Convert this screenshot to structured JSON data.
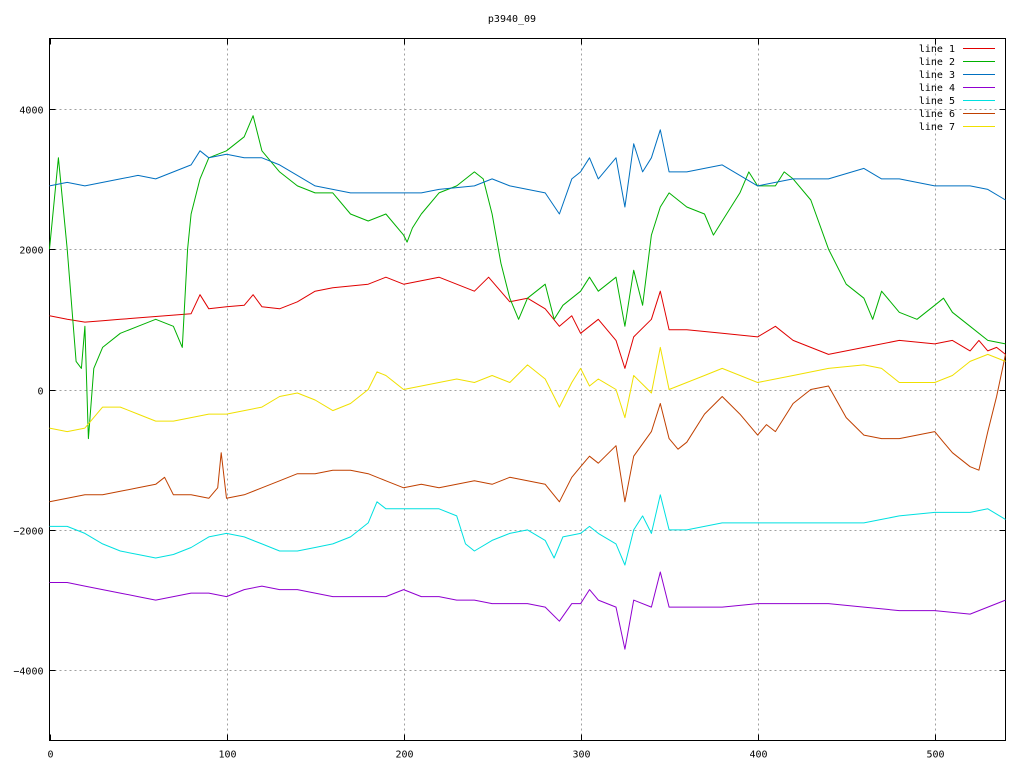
{
  "chart_data": {
    "type": "line",
    "title": "p3940_09",
    "xlabel": "",
    "ylabel": "",
    "xlim": [
      0,
      540
    ],
    "ylim": [
      -5000,
      5000
    ],
    "grid": true,
    "legend_position": "top-right",
    "x_ticks": [
      0,
      100,
      200,
      300,
      400,
      500
    ],
    "y_ticks": [
      -4000,
      -2000,
      0,
      2000,
      4000
    ],
    "x_tick_labels": [
      "0",
      "100",
      "200",
      "300",
      "400",
      "500"
    ],
    "y_tick_labels": [
      "-4000",
      "-2000",
      "0",
      "2000",
      "4000"
    ],
    "series": [
      {
        "name": "line 1",
        "color": "#e00000",
        "x": [
          0,
          10,
          20,
          30,
          40,
          50,
          60,
          70,
          80,
          85,
          90,
          100,
          110,
          115,
          120,
          130,
          140,
          150,
          160,
          180,
          190,
          200,
          210,
          220,
          240,
          248,
          260,
          270,
          280,
          288,
          295,
          300,
          310,
          320,
          325,
          330,
          340,
          345,
          350,
          360,
          380,
          400,
          410,
          420,
          440,
          460,
          480,
          500,
          510,
          520,
          525,
          530,
          535,
          540
        ],
        "y": [
          1050,
          1000,
          960,
          980,
          1000,
          1020,
          1040,
          1060,
          1080,
          1350,
          1150,
          1180,
          1200,
          1350,
          1180,
          1150,
          1250,
          1400,
          1450,
          1500,
          1600,
          1500,
          1550,
          1600,
          1400,
          1600,
          1250,
          1300,
          1150,
          900,
          1050,
          800,
          1000,
          700,
          300,
          750,
          1000,
          1400,
          850,
          850,
          800,
          750,
          900,
          700,
          500,
          600,
          700,
          650,
          700,
          550,
          700,
          550,
          600,
          500
        ]
      },
      {
        "name": "line 2",
        "color": "#00b000",
        "x": [
          0,
          5,
          10,
          15,
          18,
          20,
          22,
          25,
          30,
          40,
          50,
          60,
          70,
          75,
          78,
          80,
          85,
          90,
          100,
          110,
          115,
          120,
          130,
          140,
          150,
          160,
          170,
          180,
          190,
          200,
          202,
          205,
          210,
          220,
          230,
          240,
          245,
          250,
          255,
          260,
          265,
          270,
          280,
          285,
          290,
          300,
          305,
          310,
          320,
          325,
          330,
          335,
          340,
          345,
          350,
          360,
          370,
          375,
          380,
          390,
          395,
          400,
          410,
          415,
          420,
          430,
          440,
          450,
          460,
          465,
          470,
          480,
          490,
          500,
          505,
          510,
          520,
          530,
          540
        ],
        "y": [
          2000,
          3300,
          2000,
          400,
          300,
          900,
          -700,
          300,
          600,
          800,
          900,
          1000,
          900,
          600,
          2000,
          2500,
          3000,
          3300,
          3400,
          3600,
          3900,
          3400,
          3100,
          2900,
          2800,
          2800,
          2500,
          2400,
          2500,
          2200,
          2100,
          2300,
          2500,
          2800,
          2900,
          3100,
          3000,
          2500,
          1800,
          1300,
          1000,
          1300,
          1500,
          1000,
          1200,
          1400,
          1600,
          1400,
          1600,
          900,
          1700,
          1200,
          2200,
          2600,
          2800,
          2600,
          2500,
          2200,
          2400,
          2800,
          3100,
          2900,
          2900,
          3100,
          3000,
          2700,
          2000,
          1500,
          1300,
          1000,
          1400,
          1100,
          1000,
          1200,
          1300,
          1100,
          900,
          700,
          650
        ]
      },
      {
        "name": "line 3",
        "color": "#0070c0",
        "x": [
          0,
          10,
          20,
          30,
          40,
          50,
          60,
          70,
          80,
          85,
          90,
          100,
          110,
          120,
          130,
          140,
          150,
          160,
          170,
          180,
          190,
          200,
          210,
          220,
          240,
          250,
          260,
          270,
          280,
          288,
          295,
          300,
          305,
          310,
          320,
          325,
          330,
          335,
          340,
          345,
          350,
          360,
          370,
          380,
          400,
          410,
          420,
          440,
          460,
          470,
          480,
          500,
          520,
          530,
          540
        ],
        "y": [
          2900,
          2950,
          2900,
          2950,
          3000,
          3050,
          3000,
          3100,
          3200,
          3400,
          3300,
          3350,
          3300,
          3300,
          3200,
          3050,
          2900,
          2850,
          2800,
          2800,
          2800,
          2800,
          2800,
          2850,
          2900,
          3000,
          2900,
          2850,
          2800,
          2500,
          3000,
          3100,
          3300,
          3000,
          3300,
          2600,
          3500,
          3100,
          3300,
          3700,
          3100,
          3100,
          3150,
          3200,
          2900,
          2950,
          3000,
          3000,
          3150,
          3000,
          3000,
          2900,
          2900,
          2850,
          2700
        ]
      },
      {
        "name": "line 4",
        "color": "#9000d0",
        "x": [
          0,
          10,
          20,
          30,
          40,
          50,
          60,
          70,
          80,
          90,
          100,
          110,
          120,
          130,
          140,
          150,
          160,
          180,
          190,
          200,
          210,
          220,
          230,
          240,
          250,
          260,
          270,
          280,
          288,
          295,
          300,
          305,
          310,
          320,
          325,
          330,
          340,
          345,
          350,
          360,
          380,
          400,
          420,
          440,
          460,
          480,
          500,
          520,
          530,
          540
        ],
        "y": [
          -2750,
          -2750,
          -2800,
          -2850,
          -2900,
          -2950,
          -3000,
          -2950,
          -2900,
          -2900,
          -2950,
          -2850,
          -2800,
          -2850,
          -2850,
          -2900,
          -2950,
          -2950,
          -2950,
          -2850,
          -2950,
          -2950,
          -3000,
          -3000,
          -3050,
          -3050,
          -3050,
          -3100,
          -3300,
          -3050,
          -3050,
          -2850,
          -3000,
          -3100,
          -3700,
          -3000,
          -3100,
          -2600,
          -3100,
          -3100,
          -3100,
          -3050,
          -3050,
          -3050,
          -3100,
          -3150,
          -3150,
          -3200,
          -3100,
          -3000
        ]
      },
      {
        "name": "line 5",
        "color": "#00e0e0",
        "x": [
          0,
          10,
          20,
          30,
          40,
          50,
          60,
          70,
          80,
          90,
          100,
          110,
          120,
          130,
          140,
          150,
          160,
          170,
          180,
          185,
          190,
          200,
          210,
          220,
          230,
          235,
          240,
          250,
          260,
          270,
          280,
          285,
          290,
          300,
          305,
          310,
          320,
          325,
          330,
          335,
          340,
          345,
          350,
          360,
          380,
          400,
          420,
          440,
          460,
          470,
          480,
          500,
          520,
          530,
          540
        ],
        "y": [
          -1950,
          -1950,
          -2050,
          -2200,
          -2300,
          -2350,
          -2400,
          -2350,
          -2250,
          -2100,
          -2050,
          -2100,
          -2200,
          -2300,
          -2300,
          -2250,
          -2200,
          -2100,
          -1900,
          -1600,
          -1700,
          -1700,
          -1700,
          -1700,
          -1800,
          -2200,
          -2300,
          -2150,
          -2050,
          -2000,
          -2150,
          -2400,
          -2100,
          -2050,
          -1950,
          -2050,
          -2200,
          -2500,
          -2000,
          -1800,
          -2050,
          -1500,
          -2000,
          -2000,
          -1900,
          -1900,
          -1900,
          -1900,
          -1900,
          -1850,
          -1800,
          -1750,
          -1750,
          -1700,
          -1850
        ]
      },
      {
        "name": "line 6",
        "color": "#c04000",
        "x": [
          0,
          10,
          20,
          30,
          40,
          50,
          60,
          65,
          70,
          80,
          90,
          95,
          97,
          100,
          110,
          120,
          130,
          140,
          150,
          160,
          170,
          180,
          190,
          200,
          210,
          220,
          230,
          240,
          250,
          260,
          270,
          280,
          288,
          295,
          300,
          305,
          310,
          320,
          325,
          330,
          340,
          345,
          350,
          355,
          360,
          370,
          380,
          390,
          400,
          405,
          410,
          420,
          430,
          440,
          450,
          460,
          470,
          480,
          490,
          500,
          505,
          510,
          520,
          525,
          530,
          535,
          540
        ],
        "y": [
          -1600,
          -1550,
          -1500,
          -1500,
          -1450,
          -1400,
          -1350,
          -1250,
          -1500,
          -1500,
          -1550,
          -1400,
          -900,
          -1550,
          -1500,
          -1400,
          -1300,
          -1200,
          -1200,
          -1150,
          -1150,
          -1200,
          -1300,
          -1400,
          -1350,
          -1400,
          -1350,
          -1300,
          -1350,
          -1250,
          -1300,
          -1350,
          -1600,
          -1250,
          -1100,
          -950,
          -1050,
          -800,
          -1600,
          -950,
          -600,
          -200,
          -700,
          -850,
          -750,
          -350,
          -100,
          -350,
          -650,
          -500,
          -600,
          -200,
          0,
          50,
          -400,
          -650,
          -700,
          -700,
          -650,
          -600,
          -750,
          -900,
          -1100,
          -1150,
          -600,
          -100,
          500
        ]
      },
      {
        "name": "line 7",
        "color": "#f0e000",
        "x": [
          0,
          10,
          20,
          30,
          40,
          50,
          60,
          70,
          80,
          90,
          100,
          110,
          120,
          130,
          140,
          150,
          160,
          170,
          180,
          185,
          190,
          200,
          210,
          220,
          230,
          240,
          250,
          260,
          270,
          280,
          288,
          295,
          300,
          305,
          310,
          320,
          325,
          330,
          340,
          345,
          350,
          360,
          370,
          380,
          400,
          420,
          440,
          460,
          470,
          480,
          500,
          510,
          520,
          530,
          540
        ],
        "y": [
          -550,
          -600,
          -550,
          -250,
          -250,
          -350,
          -450,
          -450,
          -400,
          -350,
          -350,
          -300,
          -250,
          -100,
          -50,
          -150,
          -300,
          -200,
          0,
          250,
          200,
          0,
          50,
          100,
          150,
          100,
          200,
          100,
          350,
          150,
          -250,
          100,
          300,
          50,
          150,
          0,
          -400,
          200,
          -50,
          600,
          0,
          100,
          200,
          300,
          100,
          200,
          300,
          350,
          300,
          100,
          100,
          200,
          400,
          500,
          400
        ]
      }
    ]
  }
}
